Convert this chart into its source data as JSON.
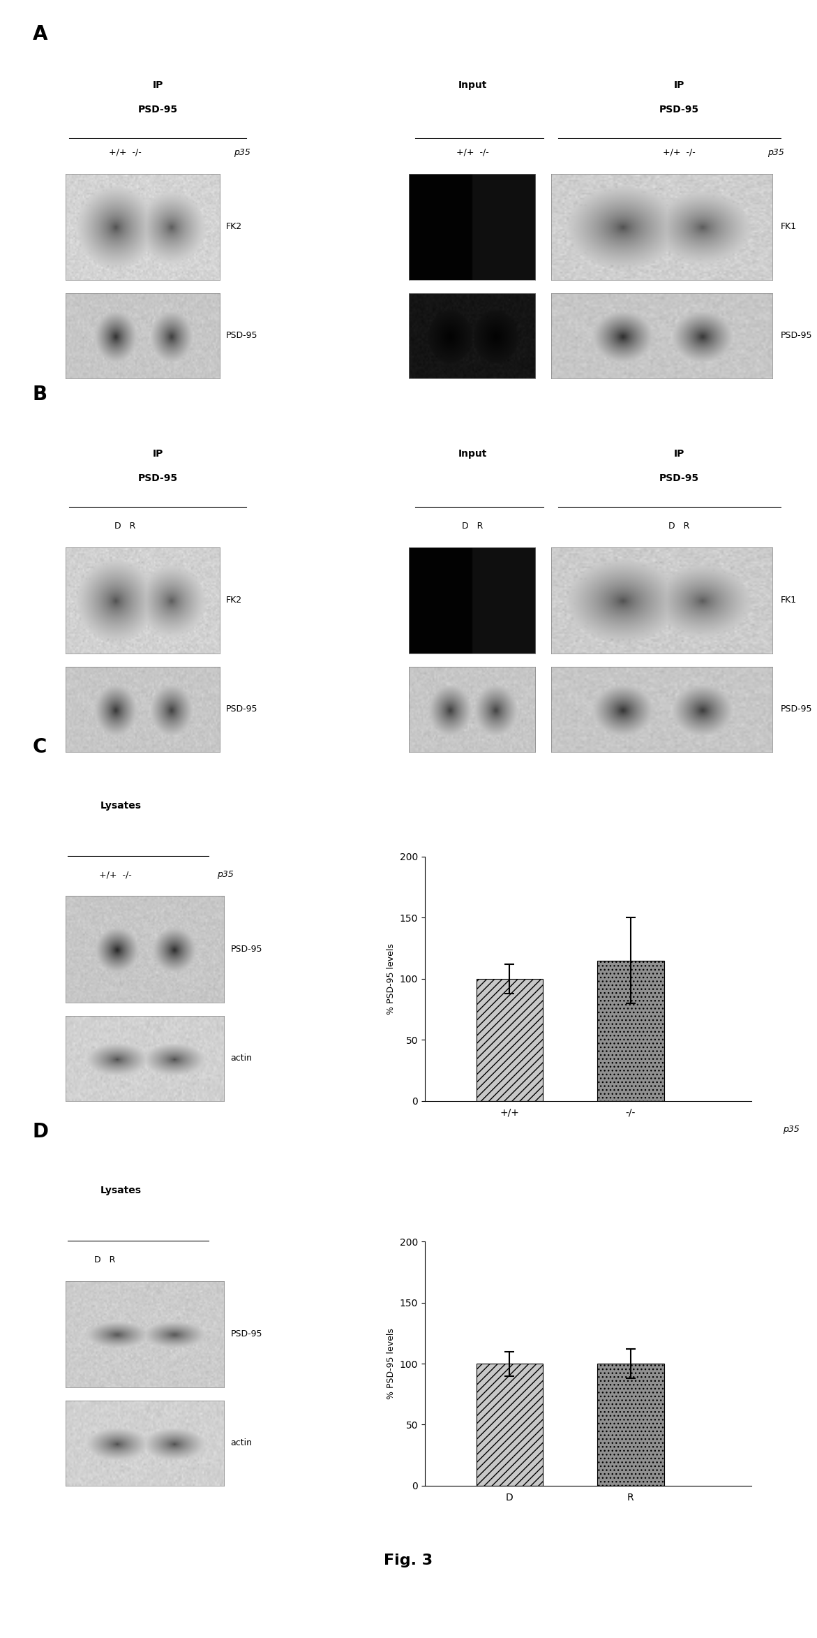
{
  "fig_width": 11.71,
  "fig_height": 23.46,
  "background_color": "#ffffff",
  "panel_label_fontsize": 20,
  "text_fontsize": 10,
  "label_fontsize": 9,
  "bar_color_light": "#c8c8c8",
  "bar_color_dark": "#909090",
  "panel_C": {
    "bar_values": [
      100,
      115
    ],
    "bar_errors": [
      12,
      35
    ],
    "bar_labels": [
      "+/+",
      "-/-"
    ],
    "xlabel_suffix": "p35",
    "ylabel": "% PSD-95 levels",
    "ylim": [
      0,
      200
    ],
    "yticks": [
      0,
      50,
      100,
      150,
      200
    ]
  },
  "panel_D": {
    "bar_values": [
      100,
      100
    ],
    "bar_errors": [
      10,
      12
    ],
    "bar_labels": [
      "D",
      "R"
    ],
    "ylabel": "% PSD-95 levels",
    "ylim": [
      0,
      200
    ],
    "yticks": [
      0,
      50,
      100,
      150,
      200
    ]
  },
  "fig_label": "Fig. 3"
}
